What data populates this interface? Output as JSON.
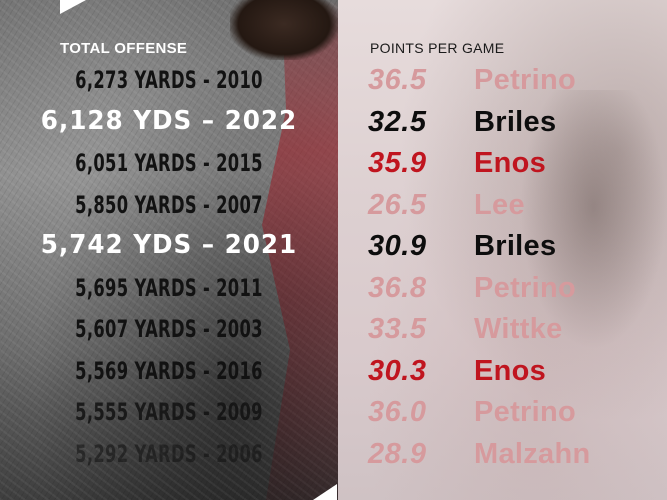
{
  "headers": {
    "left": "TOTAL OFFENSE",
    "right": "POINTS PER GAME"
  },
  "colors": {
    "faded": "#d69a9d",
    "black": "#0d0d0d",
    "red": "#c0151f",
    "highlight_yards": "#ffffff",
    "regular_yards": "#121212"
  },
  "rows": [
    {
      "yards": "6,273 YARDS  -  2010",
      "ppg": "36.5",
      "coach": "Petrino",
      "style": "regular",
      "tone": "faded"
    },
    {
      "yards": "6,128 YDS – 2022",
      "ppg": "32.5",
      "coach": "Briles",
      "style": "highlight",
      "tone": "black"
    },
    {
      "yards": "6,051 YARDS  -  2015",
      "ppg": "35.9",
      "coach": "Enos",
      "style": "regular",
      "tone": "red"
    },
    {
      "yards": "5,850 YARDS  -  2007",
      "ppg": "26.5",
      "coach": "Lee",
      "style": "regular",
      "tone": "faded"
    },
    {
      "yards": "5,742 YDS – 2021",
      "ppg": "30.9",
      "coach": "Briles",
      "style": "highlight",
      "tone": "black"
    },
    {
      "yards": "5,695 YARDS  -  2011",
      "ppg": "36.8",
      "coach": "Petrino",
      "style": "regular",
      "tone": "faded"
    },
    {
      "yards": "5,607 YARDS  -  2003",
      "ppg": "33.5",
      "coach": "Wittke",
      "style": "regular",
      "tone": "faded"
    },
    {
      "yards": "5,569 YARDS  -  2016",
      "ppg": "30.3",
      "coach": "Enos",
      "style": "regular",
      "tone": "red"
    },
    {
      "yards": "5,555 YARDS  -  2009",
      "ppg": "36.0",
      "coach": "Petrino",
      "style": "regular",
      "tone": "faded"
    },
    {
      "yards": "5,292 YARDS  -  2006",
      "ppg": "28.9",
      "coach": "Malzahn",
      "style": "regular",
      "tone": "faded"
    }
  ]
}
